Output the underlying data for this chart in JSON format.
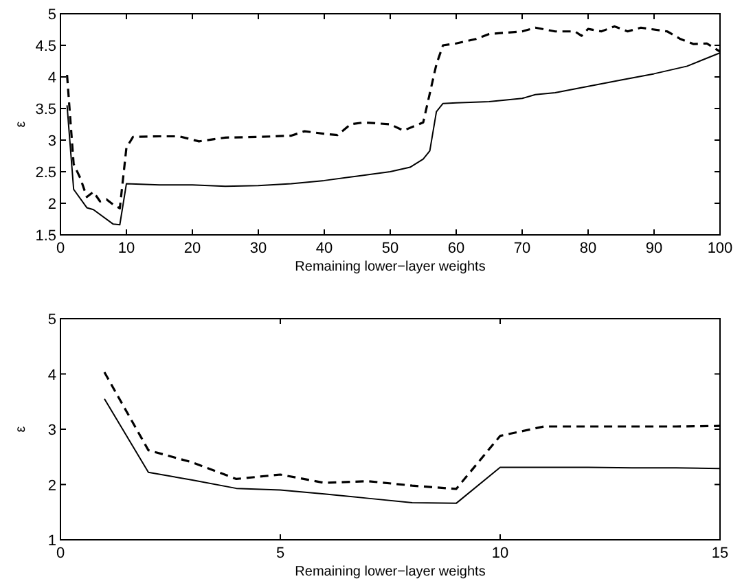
{
  "chart_data": [
    {
      "type": "line",
      "xlabel": "Remaining lower−layer weights",
      "ylabel": "ε",
      "xlim": [
        0,
        100
      ],
      "ylim": [
        1.5,
        5
      ],
      "xticks": [
        0,
        10,
        20,
        30,
        40,
        50,
        60,
        70,
        80,
        90,
        100
      ],
      "yticks": [
        1.5,
        2,
        2.5,
        3,
        3.5,
        4,
        4.5,
        5
      ],
      "grid": false,
      "series": [
        {
          "color": "#000000",
          "line_style": "solid",
          "x": [
            1,
            2,
            4,
            5,
            8,
            9,
            10,
            15,
            20,
            25,
            30,
            35,
            40,
            45,
            50,
            53,
            55,
            56,
            57,
            58,
            60,
            65,
            70,
            72,
            75,
            80,
            85,
            90,
            95,
            100
          ],
          "values": [
            3.55,
            2.22,
            1.93,
            1.9,
            1.67,
            1.66,
            2.31,
            2.29,
            2.29,
            2.27,
            2.28,
            2.31,
            2.36,
            2.43,
            2.5,
            2.57,
            2.7,
            2.83,
            3.45,
            3.58,
            3.59,
            3.61,
            3.66,
            3.72,
            3.75,
            3.85,
            3.95,
            4.05,
            4.17,
            4.38
          ]
        },
        {
          "color": "#000000",
          "line_style": "dashed",
          "x": [
            1,
            2,
            3,
            4,
            5,
            6,
            7,
            8,
            9,
            10,
            11,
            15,
            18,
            21,
            25,
            30,
            35,
            37,
            40,
            42,
            44,
            46,
            50,
            52,
            55,
            57,
            58,
            60,
            63,
            65,
            70,
            72,
            75,
            78,
            79,
            80,
            82,
            84,
            86,
            88,
            92,
            94,
            96,
            98,
            100
          ],
          "values": [
            4.03,
            2.62,
            2.4,
            2.1,
            2.18,
            2.03,
            2.06,
            1.98,
            1.92,
            2.88,
            3.05,
            3.06,
            3.06,
            2.98,
            3.04,
            3.05,
            3.07,
            3.14,
            3.1,
            3.08,
            3.25,
            3.28,
            3.25,
            3.15,
            3.28,
            4.2,
            4.5,
            4.53,
            4.6,
            4.68,
            4.72,
            4.78,
            4.72,
            4.72,
            4.65,
            4.76,
            4.72,
            4.8,
            4.72,
            4.78,
            4.72,
            4.6,
            4.52,
            4.53,
            4.4
          ]
        }
      ]
    },
    {
      "type": "line",
      "xlabel": "Remaining lower−layer weights",
      "ylabel": "ε",
      "xlim": [
        0,
        15
      ],
      "ylim": [
        1,
        5
      ],
      "xticks": [
        0,
        5,
        10,
        15
      ],
      "yticks": [
        1,
        2,
        3,
        4,
        5
      ],
      "grid": false,
      "series": [
        {
          "color": "#000000",
          "line_style": "solid",
          "x": [
            1,
            2,
            3,
            4,
            5,
            6,
            7,
            8,
            9,
            10,
            11,
            12,
            13,
            14,
            15
          ],
          "values": [
            3.55,
            2.22,
            2.08,
            1.93,
            1.9,
            1.83,
            1.75,
            1.67,
            1.66,
            2.31,
            2.31,
            2.31,
            2.3,
            2.3,
            2.29
          ]
        },
        {
          "color": "#000000",
          "line_style": "dashed",
          "x": [
            1,
            2,
            3,
            4,
            5,
            6,
            7,
            8,
            9,
            10,
            11,
            12,
            13,
            14,
            15
          ],
          "values": [
            4.03,
            2.62,
            2.4,
            2.1,
            2.18,
            2.03,
            2.06,
            1.98,
            1.92,
            2.88,
            3.05,
            3.05,
            3.05,
            3.05,
            3.06
          ]
        }
      ]
    }
  ]
}
